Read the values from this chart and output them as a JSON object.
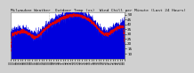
{
  "bg_color": "#d0d0d0",
  "plot_bg_color": "#ffffff",
  "ylim": [
    5,
    52
  ],
  "yticks": [
    10,
    15,
    20,
    25,
    30,
    35,
    40,
    45,
    50
  ],
  "n_points": 1440,
  "n_vgrid_lines": 2,
  "temp_color": "#0000dd",
  "windchill_color": "#dd0000",
  "title_fontsize": 3.2,
  "tick_fontsize": 3.0,
  "title": "Milwaukee Weather  Outdoor Temp (vs)  Wind Chill per Minute (Last 24 Hours)"
}
